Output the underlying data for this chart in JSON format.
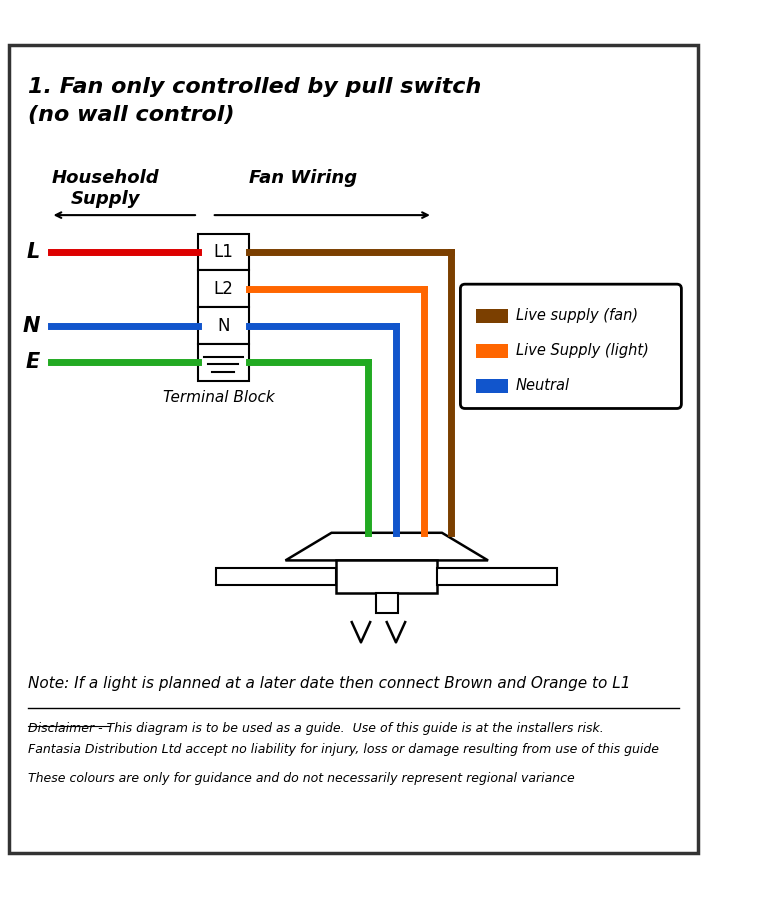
{
  "title_line1": "1. Fan only controlled by pull switch",
  "title_line2": "(no wall control)",
  "bg_color": "#ffffff",
  "border_color": "#333333",
  "wire_colors": {
    "red": "#dd0000",
    "blue": "#1155cc",
    "green": "#22aa22",
    "brown": "#7B3F00",
    "orange": "#FF6600",
    "dark_blue": "#1155cc"
  },
  "label_L": "L",
  "label_N": "N",
  "label_E": "E",
  "terminal_labels": [
    "L1",
    "L2",
    "N",
    "≡"
  ],
  "terminal_block_label": "Terminal Block",
  "household_supply_label": "Household\nSupply",
  "fan_wiring_label": "Fan Wiring",
  "legend_items": [
    {
      "color": "#7B3F00",
      "label": "Live supply (fan)"
    },
    {
      "color": "#FF6600",
      "label": "Live Supply (light)"
    },
    {
      "color": "#1155cc",
      "label": "Neutral"
    }
  ],
  "note_text": "Note: If a light is planned at a later date then connect Brown and Orange to L1",
  "disclaimer_line1": "Disclaimer - This diagram is to be used as a guide.  Use of this guide is at the installers risk.",
  "disclaimer_line2": "Fantasia Distribution Ltd accept no liability for injury, loss or damage resulting from use of this guide",
  "disclaimer_line3": "These colours are only for guidance and do not necessarily represent regional variance"
}
